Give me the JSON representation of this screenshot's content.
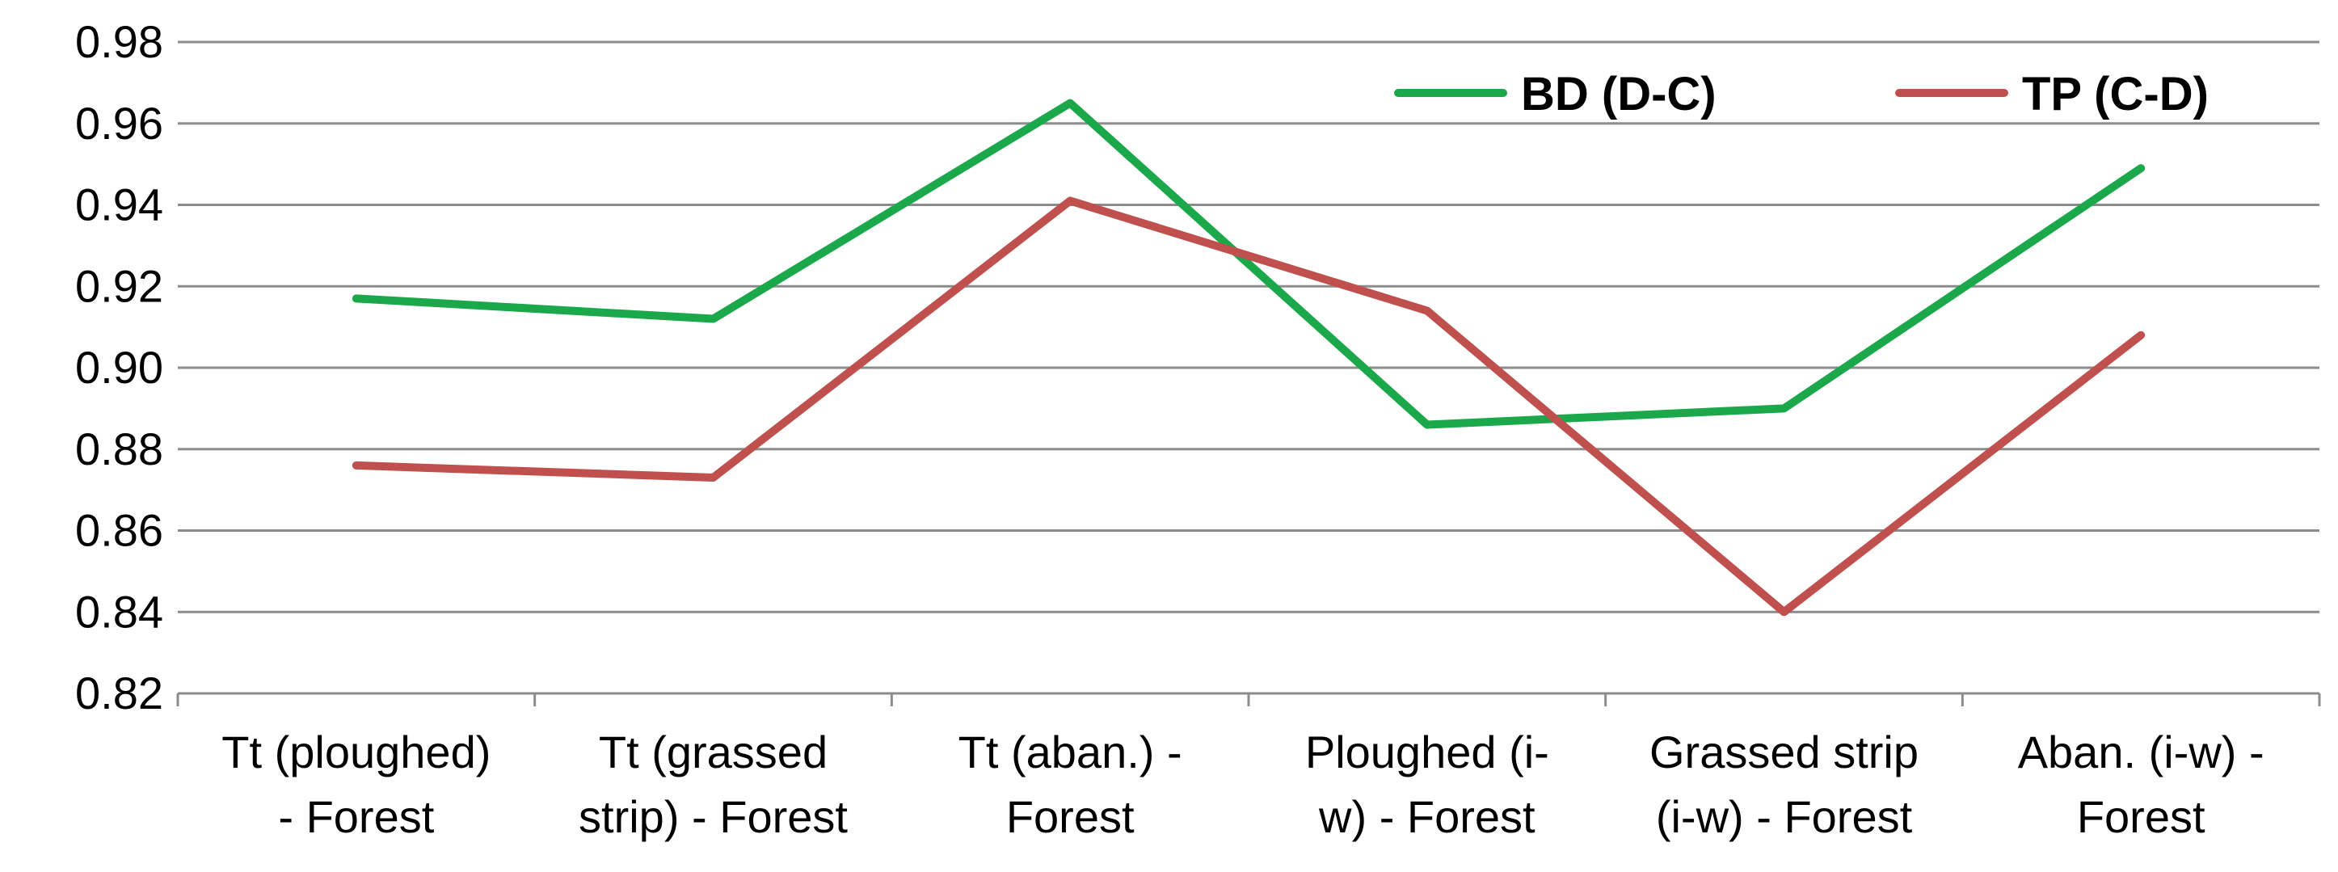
{
  "chart_data": {
    "type": "line",
    "categories": [
      [
        "Tt (ploughed)",
        "- Forest"
      ],
      [
        "Tt (grassed",
        "strip) - Forest"
      ],
      [
        "Tt (aban.) -",
        "Forest"
      ],
      [
        "Ploughed (i-",
        "w) - Forest"
      ],
      [
        "Grassed strip",
        "(i-w) - Forest"
      ],
      [
        "Aban. (i-w) -",
        "Forest"
      ]
    ],
    "series": [
      {
        "name": "BD (D-C)",
        "color": "#1aa84a",
        "values": [
          0.917,
          0.912,
          0.965,
          0.886,
          0.89,
          0.949
        ]
      },
      {
        "name": "TP (C-D)",
        "color": "#c0504d",
        "values": [
          0.876,
          0.873,
          0.941,
          0.914,
          0.84,
          0.908
        ]
      }
    ],
    "yticks": [
      "0.82",
      "0.84",
      "0.86",
      "0.88",
      "0.90",
      "0.92",
      "0.94",
      "0.96",
      "0.98"
    ],
    "ylim": [
      0.82,
      0.98
    ],
    "grid": true,
    "legend": "top-right",
    "title": "",
    "xlabel": "",
    "ylabel": ""
  }
}
